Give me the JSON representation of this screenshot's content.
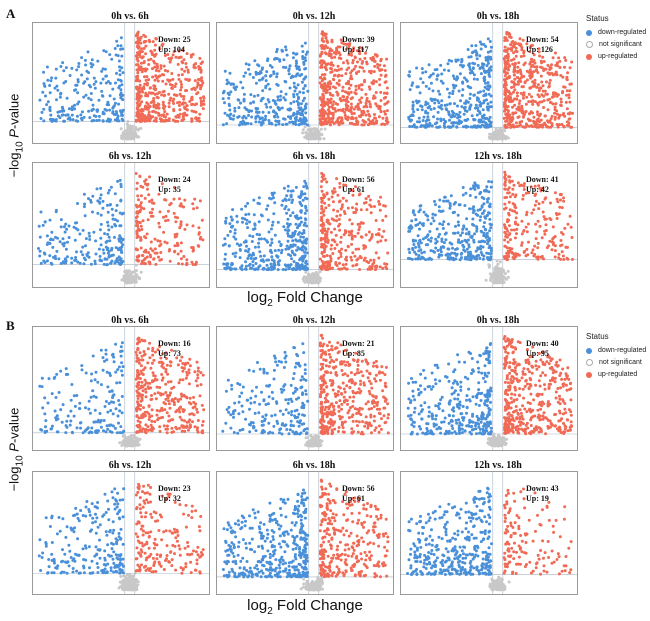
{
  "figure": {
    "sections": [
      {
        "letter": "A",
        "y_axis_label": {
          "prefix": "−log",
          "sub": "10",
          "italic": "P",
          "suffix": "-value"
        },
        "x_axis_label": {
          "prefix": "log",
          "sub": "2",
          "suffix": " Fold Change"
        },
        "legend": {
          "title": "Status",
          "items": [
            {
              "label": "down-regulated",
              "color": "#4a90d9"
            },
            {
              "label": "not significant",
              "color": "#c8c8c8"
            },
            {
              "label": "up-regulated",
              "color": "#f06a55"
            }
          ]
        },
        "panels": [
          {
            "title": "0h vs. 6h",
            "down_text": "Down: 25",
            "up_text": "Up: 104"
          },
          {
            "title": "0h vs. 12h",
            "down_text": "Down: 39",
            "up_text": "Up: 117"
          },
          {
            "title": "0h vs. 18h",
            "down_text": "Down: 54",
            "up_text": "Up: 126"
          },
          {
            "title": "6h vs. 12h",
            "down_text": "Down: 24",
            "up_text": "Up: 35"
          },
          {
            "title": "6h vs. 18h",
            "down_text": "Down: 56",
            "up_text": "Up: 61"
          },
          {
            "title": "12h vs. 18h",
            "down_text": "Down: 41",
            "up_text": "Up: 42"
          }
        ]
      },
      {
        "letter": "B",
        "y_axis_label": {
          "prefix": "−log",
          "sub": "10",
          "italic": "P",
          "suffix": "-value"
        },
        "x_axis_label": {
          "prefix": "log",
          "sub": "2",
          "suffix": " Fold Change"
        },
        "legend": {
          "title": "Status",
          "items": [
            {
              "label": "down-regulated",
              "color": "#4a90d9"
            },
            {
              "label": "not significant",
              "color": "#c8c8c8"
            },
            {
              "label": "up-regulated",
              "color": "#f06a55"
            }
          ]
        },
        "panels": [
          {
            "title": "0h vs. 6h",
            "down_text": "Down: 16",
            "up_text": "Up: 73"
          },
          {
            "title": "0h vs. 12h",
            "down_text": "Down: 21",
            "up_text": "Up: 85"
          },
          {
            "title": "0h vs. 18h",
            "down_text": "Down: 40",
            "up_text": "Up: 95"
          },
          {
            "title": "6h vs. 12h",
            "down_text": "Down: 23",
            "up_text": "Up: 32"
          },
          {
            "title": "6h vs. 18h",
            "down_text": "Down: 56",
            "up_text": "Up: 61"
          },
          {
            "title": "12h vs. 18h",
            "down_text": "Down: 43",
            "up_text": "Up: 19"
          }
        ]
      }
    ]
  },
  "chart_data": [
    {
      "type": "scatter",
      "section": "A",
      "title": "0h vs. 6h",
      "down": 25,
      "up": 104,
      "series": [
        "down-regulated",
        "not significant",
        "up-regulated"
      ]
    },
    {
      "type": "scatter",
      "section": "A",
      "title": "0h vs. 12h",
      "down": 39,
      "up": 117,
      "series": [
        "down-regulated",
        "not significant",
        "up-regulated"
      ]
    },
    {
      "type": "scatter",
      "section": "A",
      "title": "0h vs. 18h",
      "down": 54,
      "up": 126,
      "series": [
        "down-regulated",
        "not significant",
        "up-regulated"
      ]
    },
    {
      "type": "scatter",
      "section": "A",
      "title": "6h vs. 12h",
      "down": 24,
      "up": 35,
      "series": [
        "down-regulated",
        "not significant",
        "up-regulated"
      ]
    },
    {
      "type": "scatter",
      "section": "A",
      "title": "6h vs. 18h",
      "down": 56,
      "up": 61,
      "series": [
        "down-regulated",
        "not significant",
        "up-regulated"
      ]
    },
    {
      "type": "scatter",
      "section": "A",
      "title": "12h vs. 18h",
      "down": 41,
      "up": 42,
      "series": [
        "down-regulated",
        "not significant",
        "up-regulated"
      ]
    },
    {
      "type": "scatter",
      "section": "B",
      "title": "0h vs. 6h",
      "down": 16,
      "up": 73,
      "series": [
        "down-regulated",
        "not significant",
        "up-regulated"
      ]
    },
    {
      "type": "scatter",
      "section": "B",
      "title": "0h vs. 12h",
      "down": 21,
      "up": 85,
      "series": [
        "down-regulated",
        "not significant",
        "up-regulated"
      ]
    },
    {
      "type": "scatter",
      "section": "B",
      "title": "0h vs. 18h",
      "down": 40,
      "up": 95,
      "series": [
        "down-regulated",
        "not significant",
        "up-regulated"
      ]
    },
    {
      "type": "scatter",
      "section": "B",
      "title": "6h vs. 12h",
      "down": 23,
      "up": 32,
      "series": [
        "down-regulated",
        "not significant",
        "up-regulated"
      ]
    },
    {
      "type": "scatter",
      "section": "B",
      "title": "6h vs. 18h",
      "down": 56,
      "up": 61,
      "series": [
        "down-regulated",
        "not significant",
        "up-regulated"
      ]
    },
    {
      "type": "scatter",
      "section": "B",
      "title": "12h vs. 18h",
      "down": 43,
      "up": 19,
      "series": [
        "down-regulated",
        "not significant",
        "up-regulated"
      ]
    }
  ]
}
